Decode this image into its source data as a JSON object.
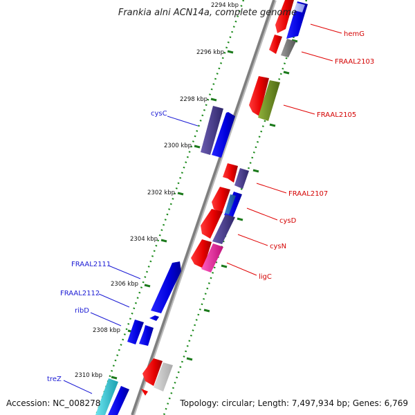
{
  "title": "Frankia alni ACN14a, complete genome",
  "footer": {
    "accession": "Accession: NC_008278",
    "topology": "Topology: circular; Length: 7,497,934 bp; Genes: 6,769"
  },
  "ticks": [
    "2294 kbp",
    "2296 kbp",
    "2298 kbp",
    "2300 kbp",
    "2302 kbp",
    "2304 kbp",
    "2306 kbp",
    "2308 kbp",
    "2310 kbp"
  ],
  "gene_labels_right": [
    "hemG",
    "FRAAL2103",
    "FRAAL2105",
    "FRAAL2107",
    "cysD",
    "cysN",
    "ligC"
  ],
  "gene_labels_left": [
    "cysC",
    "FRAAL2111",
    "FRAAL2112",
    "ribD",
    "treZ"
  ],
  "colors": {
    "forward_strand": "#0000ee",
    "reverse_strand": "#ee0000",
    "backbone": "#8a8a8a",
    "dotted_track": "#1c8a1c",
    "dark_purple": "#4a3d8f",
    "olive": "#6b8e23",
    "magenta": "#ee2a9e",
    "cyan": "#2ec4d4",
    "grey": "#777777"
  }
}
